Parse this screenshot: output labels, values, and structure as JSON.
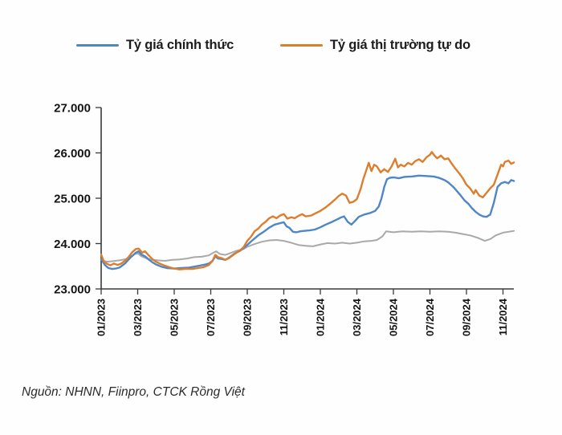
{
  "legend": {
    "items": [
      {
        "label": "Tỷ giá chính thức",
        "color": "#4f86c6"
      },
      {
        "label": "Tỷ giá thị trường tự do",
        "color": "#dd7e2e"
      }
    ]
  },
  "source_note": "Nguồn: NHNN, Fiinpro, CTCK Rồng Việt",
  "chart_data": {
    "type": "line",
    "title": "",
    "xlabel": "",
    "ylabel": "",
    "grid": false,
    "legend_position": "top",
    "y_min": 23000,
    "y_max": 27000,
    "y_tick_labels": [
      "23.000",
      "24.000",
      "25.000",
      "26.000",
      "27.000"
    ],
    "x_tick_labels": [
      "01/2023",
      "03/2023",
      "05/2023",
      "07/2023",
      "09/2023",
      "11/2023",
      "01/2024",
      "03/2024",
      "05/2024",
      "07/2024",
      "09/2024",
      "11/2024"
    ],
    "x_unit": "month index, 0 = 01/2023, one x tick every 2 months",
    "series": [
      {
        "name": "Tỷ giá thị trường tự do",
        "color": "#dd7e2e",
        "width": 2.4,
        "in_legend": true,
        "points": [
          [
            0,
            23760
          ],
          [
            0.15,
            23600
          ],
          [
            0.3,
            23560
          ],
          [
            0.5,
            23520
          ],
          [
            0.7,
            23560
          ],
          [
            0.9,
            23530
          ],
          [
            1.1,
            23560
          ],
          [
            1.3,
            23620
          ],
          [
            1.5,
            23700
          ],
          [
            1.7,
            23810
          ],
          [
            1.9,
            23880
          ],
          [
            2.05,
            23890
          ],
          [
            2.25,
            23800
          ],
          [
            2.4,
            23830
          ],
          [
            2.6,
            23740
          ],
          [
            2.8,
            23660
          ],
          [
            3,
            23600
          ],
          [
            3.2,
            23560
          ],
          [
            3.5,
            23510
          ],
          [
            3.8,
            23470
          ],
          [
            4,
            23450
          ],
          [
            4.3,
            23430
          ],
          [
            4.6,
            23440
          ],
          [
            5,
            23440
          ],
          [
            5.3,
            23460
          ],
          [
            5.6,
            23480
          ],
          [
            5.9,
            23530
          ],
          [
            6.1,
            23620
          ],
          [
            6.25,
            23750
          ],
          [
            6.4,
            23700
          ],
          [
            6.6,
            23680
          ],
          [
            6.8,
            23640
          ],
          [
            7,
            23680
          ],
          [
            7.3,
            23770
          ],
          [
            7.6,
            23850
          ],
          [
            7.8,
            23920
          ],
          [
            8,
            24060
          ],
          [
            8.2,
            24150
          ],
          [
            8.4,
            24270
          ],
          [
            8.6,
            24330
          ],
          [
            8.8,
            24420
          ],
          [
            9,
            24480
          ],
          [
            9.2,
            24560
          ],
          [
            9.4,
            24600
          ],
          [
            9.6,
            24560
          ],
          [
            9.8,
            24620
          ],
          [
            10,
            24650
          ],
          [
            10.2,
            24550
          ],
          [
            10.4,
            24580
          ],
          [
            10.6,
            24560
          ],
          [
            10.8,
            24610
          ],
          [
            11,
            24650
          ],
          [
            11.2,
            24600
          ],
          [
            11.5,
            24620
          ],
          [
            11.8,
            24680
          ],
          [
            12,
            24720
          ],
          [
            12.3,
            24800
          ],
          [
            12.6,
            24900
          ],
          [
            12.8,
            24970
          ],
          [
            13,
            25050
          ],
          [
            13.2,
            25100
          ],
          [
            13.4,
            25060
          ],
          [
            13.6,
            24900
          ],
          [
            13.8,
            24920
          ],
          [
            14,
            24980
          ],
          [
            14.2,
            25200
          ],
          [
            14.35,
            25420
          ],
          [
            14.5,
            25600
          ],
          [
            14.65,
            25780
          ],
          [
            14.8,
            25600
          ],
          [
            14.95,
            25740
          ],
          [
            15.1,
            25700
          ],
          [
            15.3,
            25570
          ],
          [
            15.5,
            25640
          ],
          [
            15.7,
            25580
          ],
          [
            15.9,
            25700
          ],
          [
            16.1,
            25870
          ],
          [
            16.25,
            25680
          ],
          [
            16.4,
            25740
          ],
          [
            16.6,
            25700
          ],
          [
            16.8,
            25780
          ],
          [
            17,
            25740
          ],
          [
            17.2,
            25820
          ],
          [
            17.4,
            25860
          ],
          [
            17.6,
            25800
          ],
          [
            17.8,
            25900
          ],
          [
            18,
            25960
          ],
          [
            18.1,
            26020
          ],
          [
            18.25,
            25940
          ],
          [
            18.4,
            25880
          ],
          [
            18.6,
            25940
          ],
          [
            18.8,
            25860
          ],
          [
            19,
            25880
          ],
          [
            19.2,
            25760
          ],
          [
            19.4,
            25650
          ],
          [
            19.6,
            25550
          ],
          [
            19.8,
            25440
          ],
          [
            20,
            25300
          ],
          [
            20.2,
            25220
          ],
          [
            20.4,
            25100
          ],
          [
            20.5,
            25180
          ],
          [
            20.7,
            25060
          ],
          [
            20.9,
            25020
          ],
          [
            21.1,
            25120
          ],
          [
            21.3,
            25220
          ],
          [
            21.5,
            25300
          ],
          [
            21.7,
            25520
          ],
          [
            21.9,
            25740
          ],
          [
            22,
            25700
          ],
          [
            22.1,
            25800
          ],
          [
            22.3,
            25830
          ],
          [
            22.45,
            25760
          ],
          [
            22.6,
            25790
          ]
        ]
      },
      {
        "name": "Tỷ giá chính thức",
        "color": "#4f86c6",
        "width": 2.4,
        "in_legend": true,
        "points": [
          [
            0,
            23660
          ],
          [
            0.2,
            23530
          ],
          [
            0.4,
            23460
          ],
          [
            0.6,
            23440
          ],
          [
            0.8,
            23450
          ],
          [
            1,
            23470
          ],
          [
            1.3,
            23560
          ],
          [
            1.6,
            23690
          ],
          [
            1.9,
            23800
          ],
          [
            2.05,
            23830
          ],
          [
            2.2,
            23760
          ],
          [
            2.4,
            23720
          ],
          [
            2.6,
            23650
          ],
          [
            2.8,
            23590
          ],
          [
            3,
            23540
          ],
          [
            3.3,
            23490
          ],
          [
            3.6,
            23460
          ],
          [
            4,
            23450
          ],
          [
            4.4,
            23460
          ],
          [
            4.8,
            23470
          ],
          [
            5.2,
            23500
          ],
          [
            5.6,
            23530
          ],
          [
            5.9,
            23560
          ],
          [
            6.1,
            23620
          ],
          [
            6.25,
            23720
          ],
          [
            6.4,
            23670
          ],
          [
            6.6,
            23660
          ],
          [
            6.8,
            23640
          ],
          [
            7,
            23690
          ],
          [
            7.3,
            23780
          ],
          [
            7.6,
            23840
          ],
          [
            7.8,
            23900
          ],
          [
            8,
            23970
          ],
          [
            8.3,
            24080
          ],
          [
            8.6,
            24180
          ],
          [
            8.9,
            24260
          ],
          [
            9.2,
            24350
          ],
          [
            9.5,
            24420
          ],
          [
            9.8,
            24450
          ],
          [
            10,
            24470
          ],
          [
            10.15,
            24380
          ],
          [
            10.3,
            24350
          ],
          [
            10.5,
            24260
          ],
          [
            10.7,
            24250
          ],
          [
            10.9,
            24270
          ],
          [
            11.1,
            24280
          ],
          [
            11.4,
            24290
          ],
          [
            11.7,
            24310
          ],
          [
            12,
            24360
          ],
          [
            12.3,
            24420
          ],
          [
            12.6,
            24470
          ],
          [
            12.9,
            24530
          ],
          [
            13.1,
            24570
          ],
          [
            13.3,
            24600
          ],
          [
            13.5,
            24480
          ],
          [
            13.7,
            24420
          ],
          [
            13.9,
            24500
          ],
          [
            14.1,
            24590
          ],
          [
            14.4,
            24640
          ],
          [
            14.7,
            24670
          ],
          [
            15,
            24720
          ],
          [
            15.2,
            24820
          ],
          [
            15.35,
            25000
          ],
          [
            15.5,
            25250
          ],
          [
            15.65,
            25420
          ],
          [
            15.8,
            25450
          ],
          [
            16,
            25460
          ],
          [
            16.3,
            25440
          ],
          [
            16.6,
            25470
          ],
          [
            17,
            25480
          ],
          [
            17.4,
            25500
          ],
          [
            17.8,
            25490
          ],
          [
            18.2,
            25480
          ],
          [
            18.5,
            25450
          ],
          [
            18.8,
            25400
          ],
          [
            19,
            25350
          ],
          [
            19.3,
            25240
          ],
          [
            19.6,
            25100
          ],
          [
            19.9,
            24950
          ],
          [
            20.1,
            24880
          ],
          [
            20.3,
            24780
          ],
          [
            20.5,
            24700
          ],
          [
            20.7,
            24640
          ],
          [
            20.9,
            24600
          ],
          [
            21.1,
            24590
          ],
          [
            21.3,
            24640
          ],
          [
            21.5,
            24900
          ],
          [
            21.7,
            25250
          ],
          [
            21.9,
            25330
          ],
          [
            22.1,
            25360
          ],
          [
            22.3,
            25330
          ],
          [
            22.45,
            25400
          ],
          [
            22.6,
            25380
          ]
        ]
      },
      {
        "name": "",
        "color": "#a9a9a9",
        "width": 2,
        "in_legend": false,
        "points": [
          [
            0,
            23640
          ],
          [
            0.3,
            23600
          ],
          [
            0.6,
            23610
          ],
          [
            1,
            23630
          ],
          [
            1.4,
            23660
          ],
          [
            1.8,
            23760
          ],
          [
            2,
            23790
          ],
          [
            2.2,
            23720
          ],
          [
            2.5,
            23670
          ],
          [
            2.8,
            23640
          ],
          [
            3.1,
            23630
          ],
          [
            3.5,
            23620
          ],
          [
            3.9,
            23640
          ],
          [
            4.3,
            23650
          ],
          [
            4.7,
            23670
          ],
          [
            5.1,
            23700
          ],
          [
            5.5,
            23710
          ],
          [
            5.9,
            23740
          ],
          [
            6.1,
            23790
          ],
          [
            6.3,
            23830
          ],
          [
            6.5,
            23770
          ],
          [
            6.8,
            23750
          ],
          [
            7,
            23780
          ],
          [
            7.4,
            23840
          ],
          [
            7.8,
            23880
          ],
          [
            8,
            23930
          ],
          [
            8.4,
            23990
          ],
          [
            8.8,
            24040
          ],
          [
            9.2,
            24070
          ],
          [
            9.6,
            24080
          ],
          [
            10,
            24060
          ],
          [
            10.4,
            24020
          ],
          [
            10.8,
            23970
          ],
          [
            11.2,
            23950
          ],
          [
            11.6,
            23940
          ],
          [
            12,
            23980
          ],
          [
            12.4,
            24010
          ],
          [
            12.8,
            24000
          ],
          [
            13.2,
            24020
          ],
          [
            13.6,
            24000
          ],
          [
            14,
            24020
          ],
          [
            14.4,
            24050
          ],
          [
            14.8,
            24060
          ],
          [
            15.1,
            24080
          ],
          [
            15.4,
            24160
          ],
          [
            15.6,
            24270
          ],
          [
            16,
            24250
          ],
          [
            16.5,
            24270
          ],
          [
            17,
            24260
          ],
          [
            17.5,
            24270
          ],
          [
            18,
            24260
          ],
          [
            18.5,
            24270
          ],
          [
            19,
            24260
          ],
          [
            19.4,
            24240
          ],
          [
            19.8,
            24210
          ],
          [
            20.2,
            24180
          ],
          [
            20.6,
            24130
          ],
          [
            21,
            24060
          ],
          [
            21.3,
            24100
          ],
          [
            21.6,
            24180
          ],
          [
            22,
            24240
          ],
          [
            22.3,
            24260
          ],
          [
            22.6,
            24280
          ]
        ]
      }
    ]
  }
}
